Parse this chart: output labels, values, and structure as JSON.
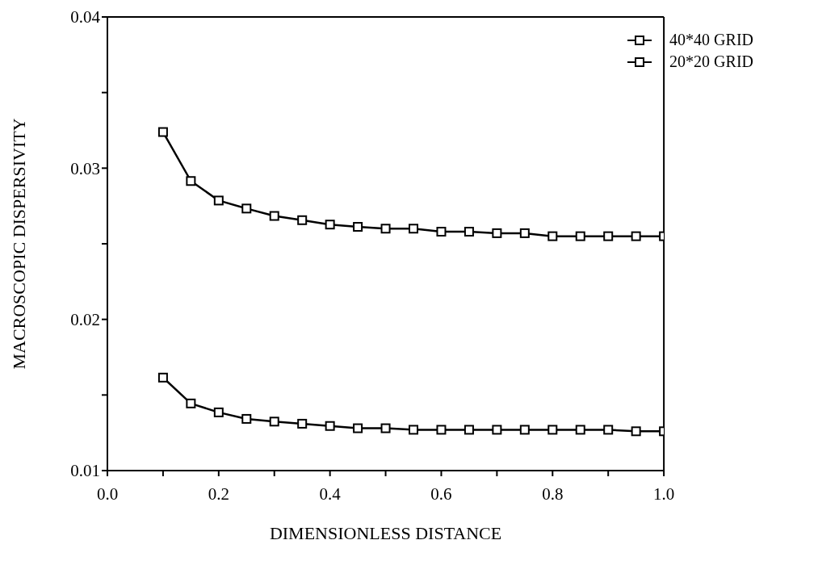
{
  "chart_data": {
    "type": "line",
    "xlabel": "DIMENSIONLESS DISTANCE",
    "ylabel": "MACROSCOPIC DISPERSIVITY",
    "x": [
      0.1,
      0.15,
      0.2,
      0.25,
      0.3,
      0.35,
      0.4,
      0.45,
      0.5,
      0.55,
      0.6,
      0.65,
      0.7,
      0.75,
      0.8,
      0.85,
      0.9,
      0.95,
      1.0
    ],
    "series": [
      {
        "name": "40*40 GRID",
        "color": "#000000",
        "values": [
          0.01615,
          0.01444,
          0.01385,
          0.01342,
          0.01324,
          0.0131,
          0.01295,
          0.0128,
          0.0128,
          0.0127,
          0.0127,
          0.0127,
          0.0127,
          0.0127,
          0.0127,
          0.0127,
          0.0127,
          0.0126,
          0.0126
        ]
      },
      {
        "name": "20*20 GRID",
        "color": "#000000",
        "values": [
          0.03239,
          0.02915,
          0.02786,
          0.02733,
          0.02684,
          0.02656,
          0.02627,
          0.02612,
          0.026,
          0.026,
          0.0258,
          0.0258,
          0.0257,
          0.0257,
          0.0255,
          0.0255,
          0.0255,
          0.0255,
          0.0255
        ]
      }
    ],
    "xlim": [
      0,
      1
    ],
    "ylim": [
      0.01,
      0.04
    ],
    "xticks": [
      {
        "value": 0,
        "label": "0.0"
      },
      {
        "value": 0.1,
        "label": null
      },
      {
        "value": 0.2,
        "label": "0.2"
      },
      {
        "value": 0.3,
        "label": null
      },
      {
        "value": 0.4,
        "label": "0.4"
      },
      {
        "value": 0.5,
        "label": null
      },
      {
        "value": 0.6,
        "label": "0.6"
      },
      {
        "value": 0.7,
        "label": null
      },
      {
        "value": 0.8,
        "label": "0.8"
      },
      {
        "value": 0.9,
        "label": null
      },
      {
        "value": 1,
        "label": "1.0"
      }
    ],
    "yticks": [
      0.01,
      {
        "value": 0.015,
        "label": null
      },
      0.02,
      {
        "value": 0.025,
        "label": null
      },
      0.03,
      {
        "value": 0.035,
        "label": null
      },
      0.04
    ],
    "marker": "square",
    "line_style": "solid",
    "legend": "top right",
    "grid": false
  }
}
